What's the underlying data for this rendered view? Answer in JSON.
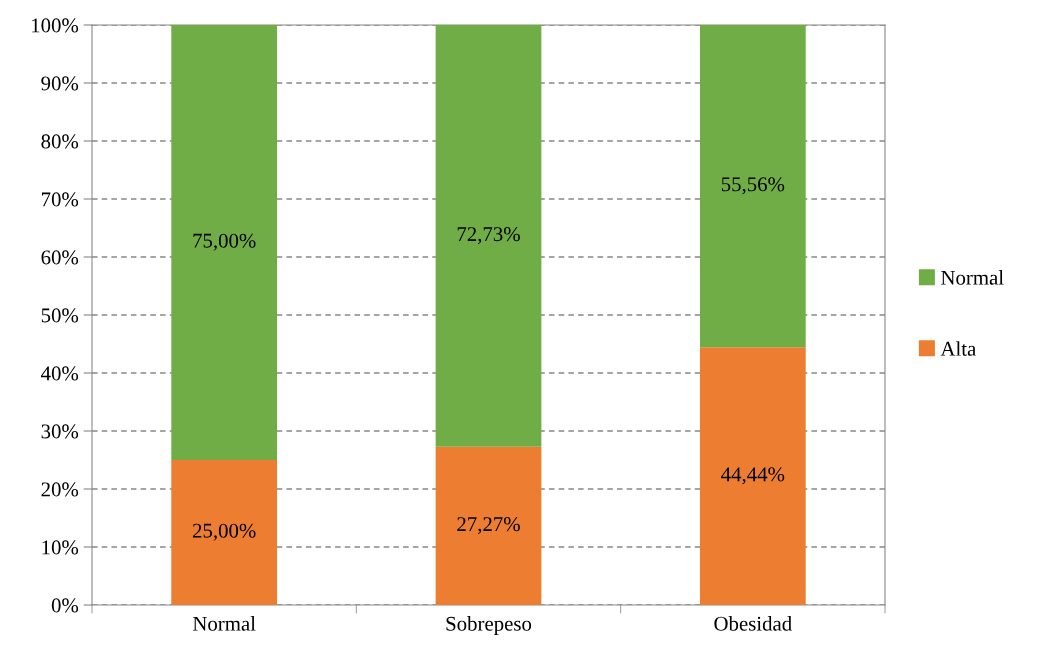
{
  "chart_data": {
    "type": "bar",
    "stacked": true,
    "categories": [
      "Normal",
      "Sobrepeso",
      "Obesidad"
    ],
    "series": [
      {
        "name": "Alta",
        "color": "#ed7d31",
        "values": [
          25.0,
          27.27,
          44.44
        ],
        "value_labels": [
          "25,00%",
          "27,27%",
          "44,44%"
        ]
      },
      {
        "name": "Normal",
        "color": "#70ad47",
        "values": [
          75.0,
          72.73,
          55.56
        ],
        "value_labels": [
          "75,00%",
          "72,73%",
          "55,56%"
        ]
      }
    ],
    "ylim": [
      0,
      100
    ],
    "yticks": [
      {
        "value": 0,
        "label": "0%"
      },
      {
        "value": 10,
        "label": "10%"
      },
      {
        "value": 20,
        "label": "20%"
      },
      {
        "value": 30,
        "label": "30%"
      },
      {
        "value": 40,
        "label": "40%"
      },
      {
        "value": 50,
        "label": "50%"
      },
      {
        "value": 60,
        "label": "60%"
      },
      {
        "value": 70,
        "label": "70%"
      },
      {
        "value": 80,
        "label": "80%"
      },
      {
        "value": 90,
        "label": "90%"
      },
      {
        "value": 100,
        "label": "100%"
      }
    ],
    "grid": "y",
    "legend": "right"
  }
}
